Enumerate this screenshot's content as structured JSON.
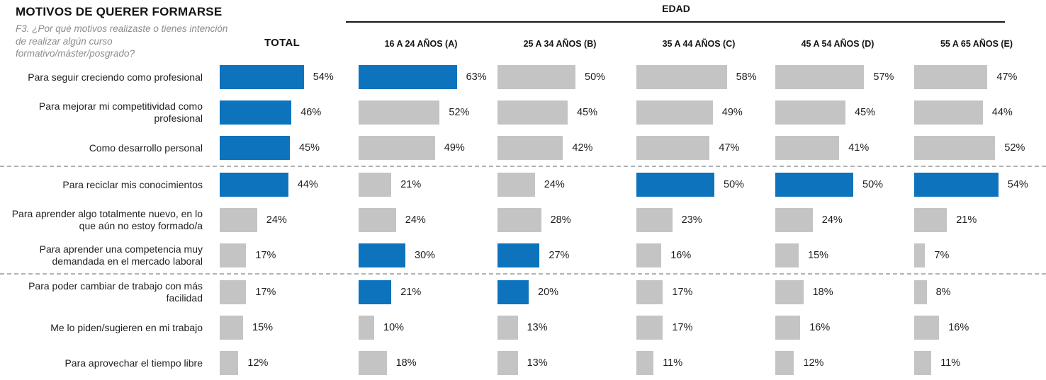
{
  "header": {
    "title": "MOTIVOS DE QUERER FORMARSE",
    "subtitle": "F3. ¿Por qué motivos realizaste o tienes intención de realizar algún curso formativo/máster/posgrado?",
    "group_header": "EDAD"
  },
  "colors": {
    "highlight_blue": "#0d73bd",
    "neutral_gray": "#c4c4c4",
    "separator_gray": "#b3b3b3"
  },
  "chart_data": {
    "type": "bar",
    "title": "MOTIVOS DE QUERER FORMARSE",
    "question": "F3. ¿Por qué motivos realizaste o tienes intención de realizar algún curso formativo/máster/posgrado?",
    "group_header": "EDAD",
    "unit": "%",
    "orientation": "horizontal",
    "xlim": [
      0,
      70
    ],
    "columns": [
      "TOTAL",
      "16 A 24 AÑOS (A)",
      "25 A 34 AÑOS (B)",
      "35 A 44 AÑOS (C)",
      "45 A 54 AÑOS (D)",
      "55 A 65 AÑOS (E)"
    ],
    "categories": [
      "Para seguir creciendo como profesional",
      "Para mejorar mi competitividad como profesional",
      "Como desarrollo personal",
      "Para reciclar mis conocimientos",
      "Para aprender algo totalmente nuevo, en lo que aún no estoy formado/a",
      "Para aprender una competencia muy demandada en el mercado laboral",
      "Para poder cambiar de trabajo con más facilidad",
      "Me lo piden/sugieren en mi trabajo",
      "Para aprovechar el tiempo libre"
    ],
    "series": [
      {
        "name": "TOTAL",
        "values": [
          54,
          46,
          45,
          44,
          24,
          17,
          17,
          15,
          12
        ],
        "highlighted": [
          true,
          true,
          true,
          true,
          false,
          false,
          false,
          false,
          false
        ]
      },
      {
        "name": "16 A 24 AÑOS (A)",
        "values": [
          63,
          52,
          49,
          21,
          24,
          30,
          21,
          10,
          18
        ],
        "highlighted": [
          true,
          false,
          false,
          false,
          false,
          true,
          true,
          false,
          false
        ]
      },
      {
        "name": "25 A 34 AÑOS (B)",
        "values": [
          50,
          45,
          42,
          24,
          28,
          27,
          20,
          13,
          13
        ],
        "highlighted": [
          false,
          false,
          false,
          false,
          false,
          true,
          true,
          false,
          false
        ]
      },
      {
        "name": "35 A 44 AÑOS (C)",
        "values": [
          58,
          49,
          47,
          50,
          23,
          16,
          17,
          17,
          11
        ],
        "highlighted": [
          false,
          false,
          false,
          true,
          false,
          false,
          false,
          false,
          false
        ]
      },
      {
        "name": "45 A 54 AÑOS (D)",
        "values": [
          57,
          45,
          41,
          50,
          24,
          15,
          18,
          16,
          12
        ],
        "highlighted": [
          false,
          false,
          false,
          true,
          false,
          false,
          false,
          false,
          false
        ]
      },
      {
        "name": "55 A 65 AÑOS (E)",
        "values": [
          47,
          44,
          52,
          54,
          21,
          7,
          8,
          16,
          11
        ],
        "highlighted": [
          false,
          false,
          false,
          true,
          false,
          false,
          false,
          false,
          false
        ]
      }
    ],
    "group_separators_after_category_index": [
      2,
      5
    ],
    "legend": "none",
    "grid": "off"
  }
}
